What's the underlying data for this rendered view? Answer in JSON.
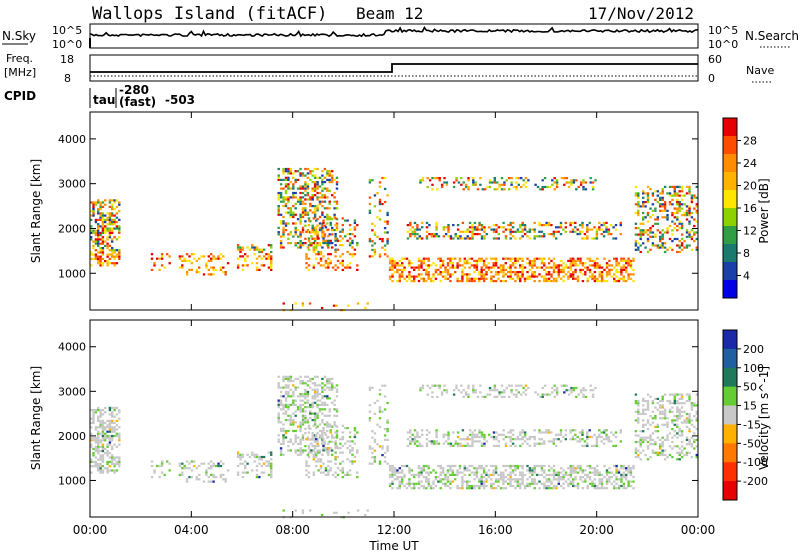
{
  "header": {
    "station": "Wallops Island (fitACF)",
    "beam": "Beam 12",
    "date": "17/Nov/2012"
  },
  "noise_panel": {
    "left_label": "N.Sky",
    "right_label": "N.Search",
    "left_ticks": [
      "10^5",
      "10^0"
    ],
    "right_ticks": [
      "10^5",
      "10^0"
    ]
  },
  "freq_panel": {
    "left_label_1": "Freq.",
    "left_label_2": "[MHz]",
    "left_ticks": [
      "18",
      "8"
    ],
    "right_label": "Nave",
    "right_ticks": [
      "60",
      "0"
    ]
  },
  "cpid_row": {
    "label": "CPID",
    "tau": "tau",
    "code1_top": "-280",
    "code1_bottom": "(fast)",
    "code2": "-503"
  },
  "power_colorbar": {
    "title": "Power [dB]",
    "ticks": [
      "28",
      "24",
      "20",
      "16",
      "12",
      "8",
      "4"
    ],
    "colors": [
      "#e60000",
      "#ff4d00",
      "#ff8c00",
      "#ffb300",
      "#ffe600",
      "#8cd200",
      "#2f9e44",
      "#1a7a6e",
      "#1b3fa8",
      "#0000e6"
    ]
  },
  "velocity_colorbar": {
    "title": "Velocity [m s^-1]",
    "ticks": [
      "200",
      "100",
      "50",
      "15",
      "-15",
      "-50",
      "-100",
      "-200"
    ],
    "colors": [
      "#1a2aa8",
      "#2060a0",
      "#1f7a5c",
      "#66cc33",
      "#c8c8c8",
      "#ffb000",
      "#ff7800",
      "#ff3000",
      "#e60000"
    ]
  },
  "chart_data": [
    {
      "type": "heatmap",
      "title": "",
      "xlabel": "Time UT",
      "ylabel": "Slant Range [km]",
      "x_ticks": [
        "00:00",
        "04:00",
        "08:00",
        "12:00",
        "16:00",
        "20:00",
        "00:00"
      ],
      "y_ticks": [
        1000,
        2000,
        3000,
        4000
      ],
      "xlim": [
        0,
        24
      ],
      "ylim": [
        180,
        4600
      ],
      "quantity": "Power [dB]",
      "value_range": [
        3,
        30
      ]
    },
    {
      "type": "heatmap",
      "title": "",
      "xlabel": "Time UT",
      "ylabel": "Slant Range [km]",
      "x_ticks": [
        "00:00",
        "04:00",
        "08:00",
        "12:00",
        "16:00",
        "20:00",
        "00:00"
      ],
      "y_ticks": [
        1000,
        2000,
        3000,
        4000
      ],
      "xlim": [
        0,
        24
      ],
      "ylim": [
        180,
        4600
      ],
      "quantity": "Velocity [m s^-1]",
      "value_range": [
        -200,
        200
      ]
    }
  ]
}
